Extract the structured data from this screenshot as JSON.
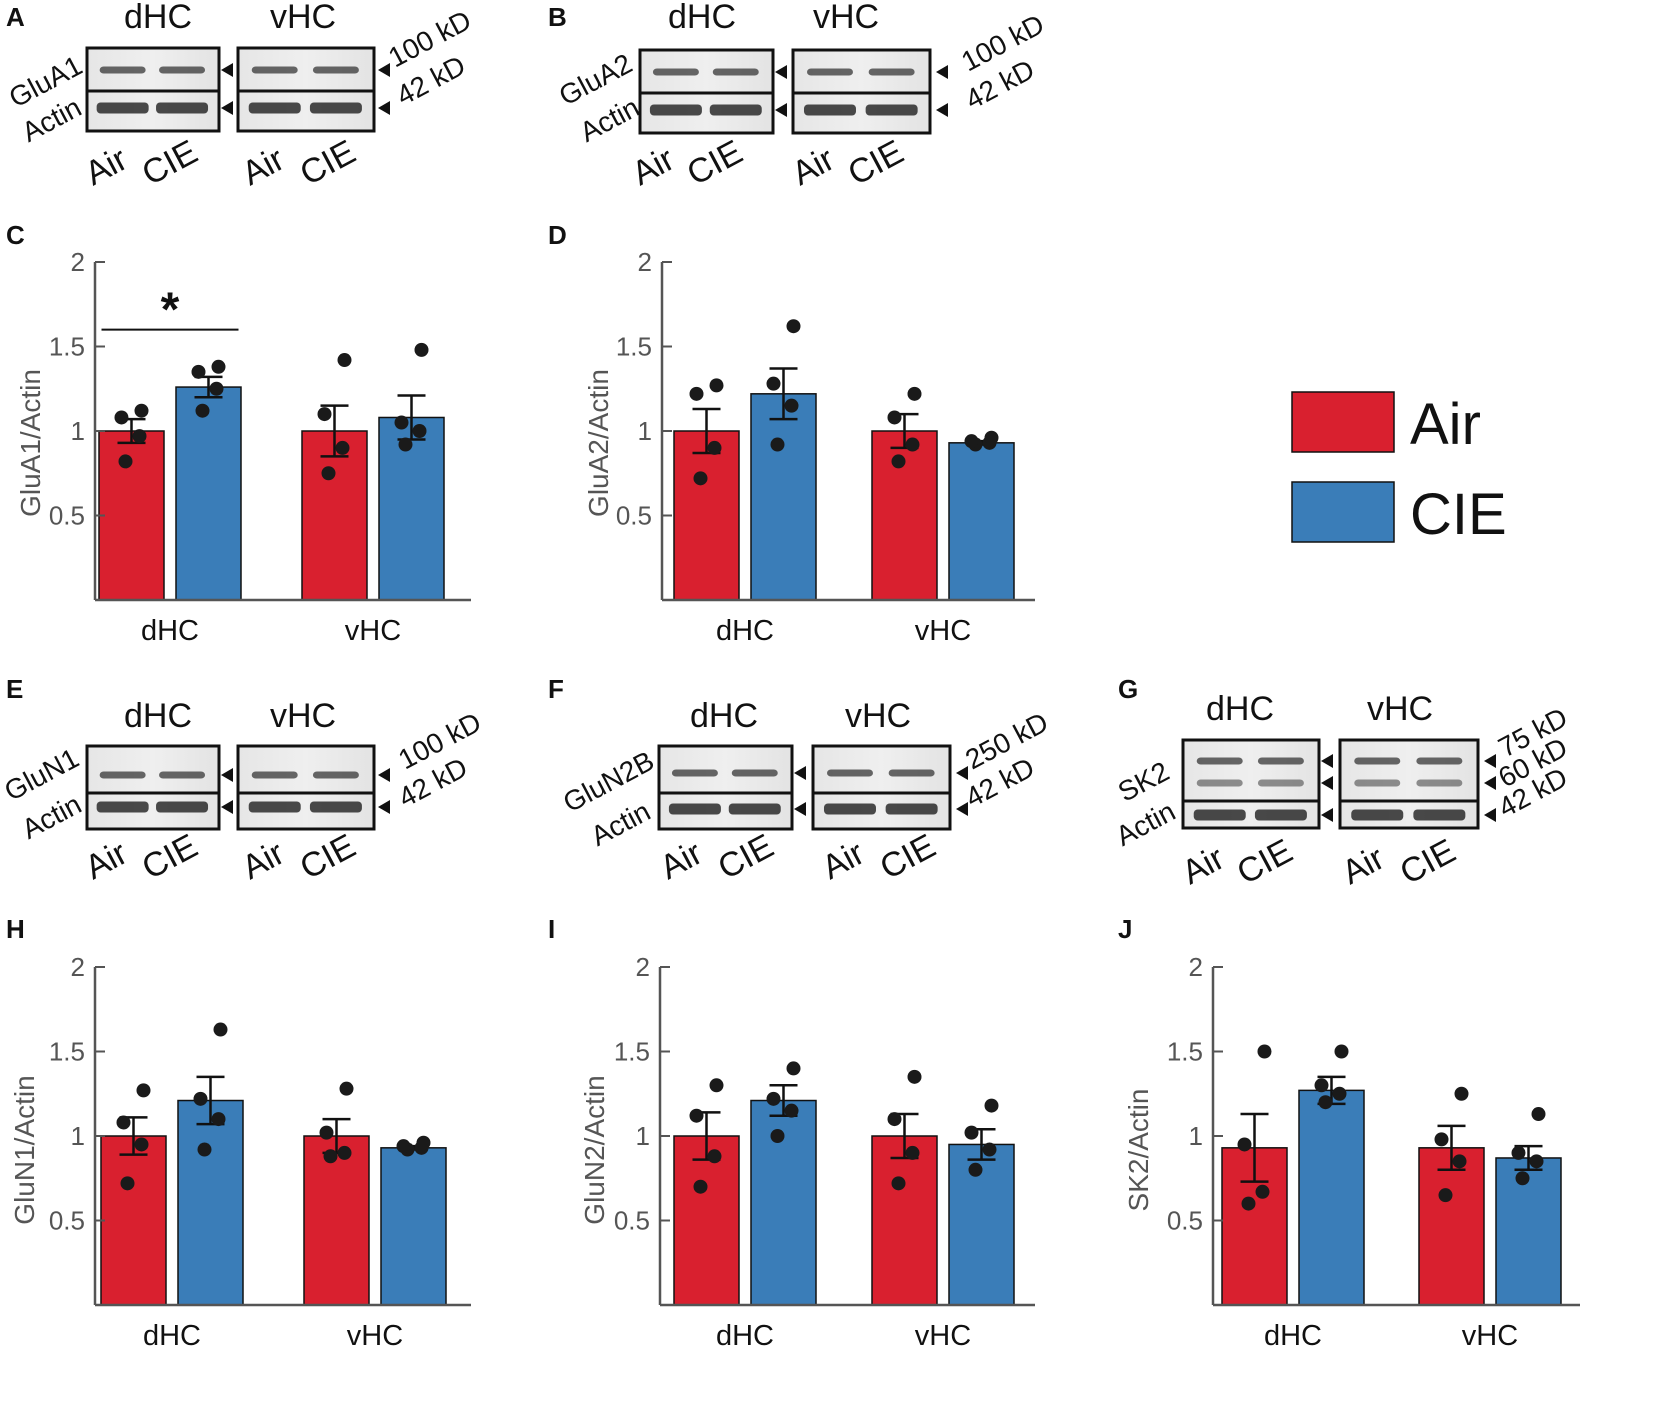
{
  "colors": {
    "air": "#d9202f",
    "cie": "#3a7db8",
    "axis": "#555555",
    "ink": "#111111"
  },
  "legend": {
    "items": [
      {
        "label": "Air",
        "color": "#d9202f"
      },
      {
        "label": "CIE",
        "color": "#3a7db8"
      }
    ]
  },
  "blots": [
    {
      "panel": "A",
      "regions": [
        "dHC",
        "vHC"
      ],
      "rows": [
        "GluA1",
        "Actin"
      ],
      "markers": [
        "100 kD",
        "42 kD"
      ],
      "lanes": [
        "Air",
        "CIE",
        "Air",
        "CIE"
      ]
    },
    {
      "panel": "B",
      "regions": [
        "dHC",
        "vHC"
      ],
      "rows": [
        "GluA2",
        "Actin"
      ],
      "markers": [
        "100 kD",
        "42 kD"
      ],
      "lanes": [
        "Air",
        "CIE",
        "Air",
        "CIE"
      ]
    },
    {
      "panel": "E",
      "regions": [
        "dHC",
        "vHC"
      ],
      "rows": [
        "GluN1",
        "Actin"
      ],
      "markers": [
        "100 kD",
        "42 kD"
      ],
      "lanes": [
        "Air",
        "CIE",
        "Air",
        "CIE"
      ]
    },
    {
      "panel": "F",
      "regions": [
        "dHC",
        "vHC"
      ],
      "rows": [
        "GluN2B",
        "Actin"
      ],
      "markers": [
        "250 kD",
        "42 kD"
      ],
      "lanes": [
        "Air",
        "CIE",
        "Air",
        "CIE"
      ]
    },
    {
      "panel": "G",
      "regions": [
        "dHC",
        "vHC"
      ],
      "rows": [
        "SK2",
        "Actin"
      ],
      "markers": [
        "75 kD",
        "60 kD",
        "42 kD"
      ],
      "lanes": [
        "Air",
        "CIE",
        "Air",
        "CIE"
      ]
    }
  ],
  "chart_data": [
    {
      "panel": "C",
      "type": "bar",
      "title": "",
      "xlabel": "",
      "ylabel": "GluA1/Actin",
      "categories": [
        "dHC",
        "vHC"
      ],
      "ylim": [
        0,
        2
      ],
      "yticks": [
        "0.5",
        "1",
        "1.5",
        "2"
      ],
      "series": [
        {
          "name": "Air",
          "values": [
            1.0,
            1.0
          ],
          "sem": [
            0.07,
            0.15
          ],
          "points": [
            [
              0.82,
              0.97,
              1.08,
              1.12
            ],
            [
              0.75,
              0.9,
              1.1,
              1.42
            ]
          ]
        },
        {
          "name": "CIE",
          "values": [
            1.26,
            1.08
          ],
          "sem": [
            0.06,
            0.13
          ],
          "points": [
            [
              1.12,
              1.25,
              1.35,
              1.38
            ],
            [
              0.92,
              1.0,
              1.05,
              1.48
            ]
          ]
        }
      ],
      "annotations": [
        {
          "text": "*",
          "between": "dHC Air vs CIE"
        }
      ]
    },
    {
      "panel": "D",
      "type": "bar",
      "title": "",
      "xlabel": "",
      "ylabel": "GluA2/Actin",
      "categories": [
        "dHC",
        "vHC"
      ],
      "ylim": [
        0,
        2
      ],
      "yticks": [
        "0.5",
        "1",
        "1.5",
        "2"
      ],
      "series": [
        {
          "name": "Air",
          "values": [
            1.0,
            1.0
          ],
          "sem": [
            0.13,
            0.1
          ],
          "points": [
            [
              0.72,
              0.9,
              1.22,
              1.27
            ],
            [
              0.82,
              0.92,
              1.08,
              1.22
            ]
          ]
        },
        {
          "name": "CIE",
          "values": [
            1.22,
            0.93
          ],
          "sem": [
            0.15,
            0.01
          ],
          "points": [
            [
              0.92,
              1.15,
              1.28,
              1.62
            ],
            [
              0.92,
              0.93,
              0.94,
              0.96
            ]
          ]
        }
      ],
      "annotations": []
    },
    {
      "panel": "H",
      "type": "bar",
      "title": "",
      "xlabel": "",
      "ylabel": "GluN1/Actin",
      "categories": [
        "dHC",
        "vHC"
      ],
      "ylim": [
        0,
        2
      ],
      "yticks": [
        "0.5",
        "1",
        "1.5",
        "2"
      ],
      "series": [
        {
          "name": "Air",
          "values": [
            1.0,
            1.0
          ],
          "sem": [
            0.11,
            0.1
          ],
          "points": [
            [
              0.72,
              0.95,
              1.08,
              1.27
            ],
            [
              0.88,
              0.9,
              1.02,
              1.28
            ]
          ]
        },
        {
          "name": "CIE",
          "values": [
            1.21,
            0.93
          ],
          "sem": [
            0.14,
            0.01
          ],
          "points": [
            [
              0.92,
              1.1,
              1.22,
              1.63
            ],
            [
              0.92,
              0.93,
              0.94,
              0.96
            ]
          ]
        }
      ],
      "annotations": []
    },
    {
      "panel": "I",
      "type": "bar",
      "title": "",
      "xlabel": "",
      "ylabel": "GluN2/Actin",
      "categories": [
        "dHC",
        "vHC"
      ],
      "ylim": [
        0,
        2
      ],
      "yticks": [
        "0.5",
        "1",
        "1.5",
        "2"
      ],
      "series": [
        {
          "name": "Air",
          "values": [
            1.0,
            1.0
          ],
          "sem": [
            0.14,
            0.13
          ],
          "points": [
            [
              0.7,
              0.88,
              1.12,
              1.3
            ],
            [
              0.72,
              0.9,
              1.1,
              1.35
            ]
          ]
        },
        {
          "name": "CIE",
          "values": [
            1.21,
            0.95
          ],
          "sem": [
            0.09,
            0.09
          ],
          "points": [
            [
              1.0,
              1.15,
              1.22,
              1.4
            ],
            [
              0.8,
              0.92,
              1.02,
              1.18
            ]
          ]
        }
      ],
      "annotations": []
    },
    {
      "panel": "J",
      "type": "bar",
      "title": "",
      "xlabel": "",
      "ylabel": "SK2/Actin",
      "categories": [
        "dHC",
        "vHC"
      ],
      "ylim": [
        0,
        2
      ],
      "yticks": [
        "0.5",
        "1",
        "1.5",
        "2"
      ],
      "series": [
        {
          "name": "Air",
          "values": [
            0.93,
            0.93
          ],
          "sem": [
            0.2,
            0.13
          ],
          "points": [
            [
              0.6,
              0.67,
              0.95,
              1.5
            ],
            [
              0.65,
              0.85,
              0.98,
              1.25
            ]
          ]
        },
        {
          "name": "CIE",
          "values": [
            1.27,
            0.87
          ],
          "sem": [
            0.08,
            0.07
          ],
          "points": [
            [
              1.2,
              1.25,
              1.3,
              1.5
            ],
            [
              0.75,
              0.85,
              0.9,
              1.13
            ]
          ]
        }
      ],
      "annotations": []
    }
  ]
}
